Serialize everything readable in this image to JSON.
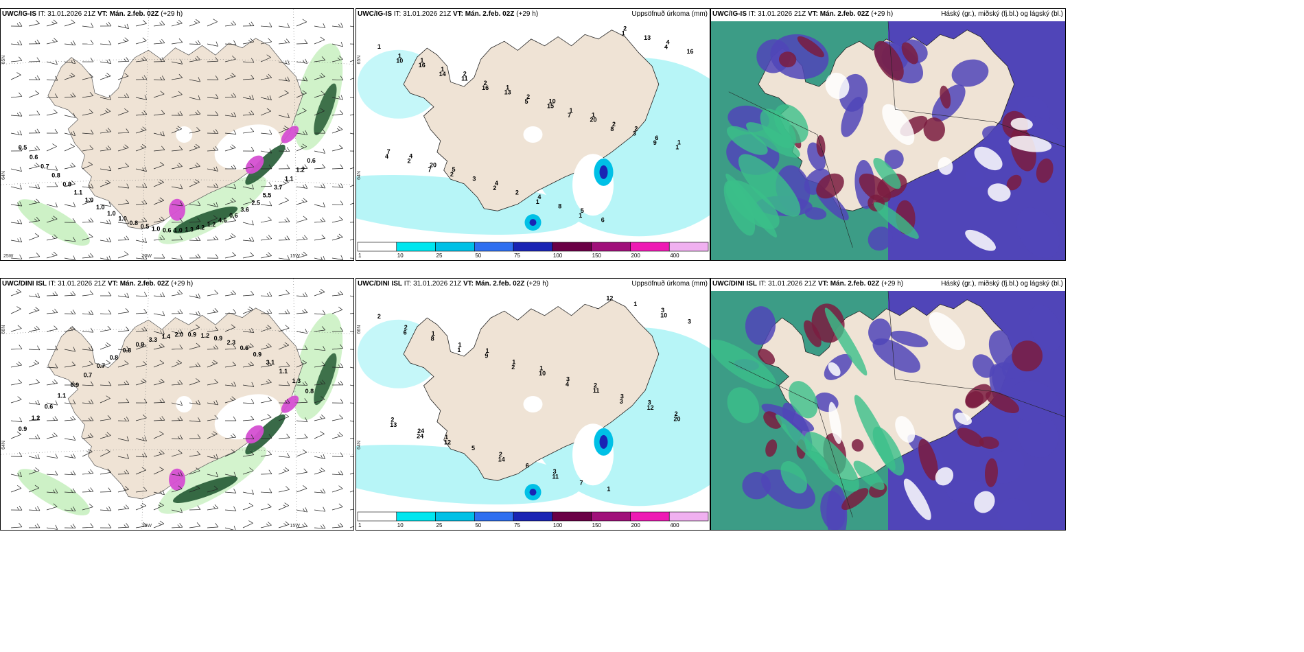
{
  "header_prefix": {
    "it": "IT:",
    "vt": "VT:"
  },
  "panels": [
    {
      "model": "UWC/IG-IS",
      "it_time": "31.01.2026 21Z",
      "vt_time": "Mán. 2.feb. 02Z",
      "lead": "(+29 h)",
      "right_title": "",
      "lat_labels": [
        "65N",
        "64N"
      ],
      "lon_labels": [
        "25W",
        "20W",
        "15W"
      ],
      "value_labels": [
        "0.5",
        "0.6",
        "0.7",
        "0.8",
        "0.8",
        "1.1",
        "1.0",
        "1.0",
        "1.0",
        "1.0",
        "0.8",
        "0.5",
        "1.0",
        "0.6",
        "1.0",
        "1.3",
        "4.2",
        "1.2",
        "4.6",
        "0.6",
        "3.6",
        "2.5",
        "5.5",
        "3.7",
        "1.1",
        "1.2",
        "0.6"
      ]
    },
    {
      "model": "UWC/IG-IS",
      "it_time": "31.01.2026 21Z",
      "vt_time": "Mán. 2.feb. 02Z",
      "lead": "(+29 h)",
      "right_title": "Uppsöfnuð úrkoma (mm)",
      "lat_labels": [
        "65N",
        "64N"
      ],
      "lon_labels": [],
      "value_labels": [
        "1",
        "1",
        "2",
        "1",
        "10",
        "1",
        "2",
        "1",
        "4",
        "5",
        "4",
        "4",
        "5",
        "2",
        "4",
        "1",
        "1",
        "2",
        "2",
        "1",
        "2",
        "6",
        "7",
        "20",
        "3",
        "2",
        "8",
        "6",
        "13",
        "16",
        "16",
        "11",
        "13",
        "15",
        "20",
        "3",
        "1",
        "2",
        "2",
        "2",
        "1",
        "1",
        "1",
        "4",
        "10",
        "14",
        "16",
        "5",
        "7",
        "8",
        "9",
        "4",
        "7"
      ]
    },
    {
      "model": "UWC/IG-IS",
      "it_time": "31.01.2026 21Z",
      "vt_time": "Mán. 2.feb. 02Z",
      "lead": "(+29 h)",
      "right_title": "Háský (gr.), miðský (fj.bl.) og lágský (bl.)",
      "lat_labels": [],
      "lon_labels": [],
      "value_labels": []
    },
    {
      "model": "UWC/DINI ISL",
      "it_time": "31.01.2026 21Z",
      "vt_time": "Mán. 2.feb. 02Z",
      "lead": "(+29 h)",
      "right_title": "",
      "lat_labels": [
        "66N",
        "64N"
      ],
      "lon_labels": [
        "20W",
        "15W"
      ],
      "value_labels": [
        "0.9",
        "1.2",
        "0.6",
        "1.1",
        "0.9",
        "0.7",
        "0.7",
        "0.8",
        "0.8",
        "0.9",
        "3.3",
        "1.4",
        "2.0",
        "0.9",
        "1.2",
        "0.9",
        "2.3",
        "0.6",
        "0.9",
        "3.1",
        "1.1",
        "1.3",
        "0.8"
      ]
    },
    {
      "model": "UWC/DINI ISL",
      "it_time": "31.01.2026 21Z",
      "vt_time": "Mán. 2.feb. 02Z",
      "lead": "(+29 h)",
      "right_title": "Uppsöfnuð úrkoma (mm)",
      "lat_labels": [
        "66N",
        "64N"
      ],
      "lon_labels": [],
      "value_labels": [
        "2",
        "1",
        "1",
        "1",
        "2",
        "3",
        "2",
        "1",
        "2",
        "3",
        "1",
        "3",
        "2",
        "1",
        "1",
        "3",
        "3",
        "2",
        "24",
        "5",
        "6",
        "7",
        "1",
        "3",
        "8",
        "9",
        "10",
        "11",
        "12",
        "13",
        "12",
        "14",
        "11",
        "12",
        "10",
        "6",
        "1",
        "2",
        "4",
        "3",
        "20",
        "24"
      ]
    },
    {
      "model": "UWC/DINI ISL",
      "it_time": "31.01.2026 21Z",
      "vt_time": "Mán. 2.feb. 02Z",
      "lead": "(+29 h)",
      "right_title": "Háský (gr.), miðský (fj.bl.) og lágský (bl.)",
      "lat_labels": [],
      "lon_labels": [],
      "value_labels": []
    }
  ],
  "colorbar": {
    "labels": [
      "1",
      "10",
      "25",
      "50",
      "75",
      "100",
      "150",
      "200",
      "400"
    ],
    "colors": [
      "#ffffff",
      "#00e6ef",
      "#00c0e6",
      "#2f6ff0",
      "#1a24b4",
      "#6a0046",
      "#a0107a",
      "#ee1ab4",
      "#f0b0f0"
    ]
  },
  "colors": {
    "land": "#efe3d5",
    "sea_precip_light": "#b7f5f7",
    "snow_green_light": "#c8f0c0",
    "snow_green_dark": "#245a34",
    "snow_magenta": "#d54fd2",
    "cloud_high": "#3bbf8a",
    "cloud_mid": "#5045b8",
    "cloud_low": "#7a1c40"
  }
}
